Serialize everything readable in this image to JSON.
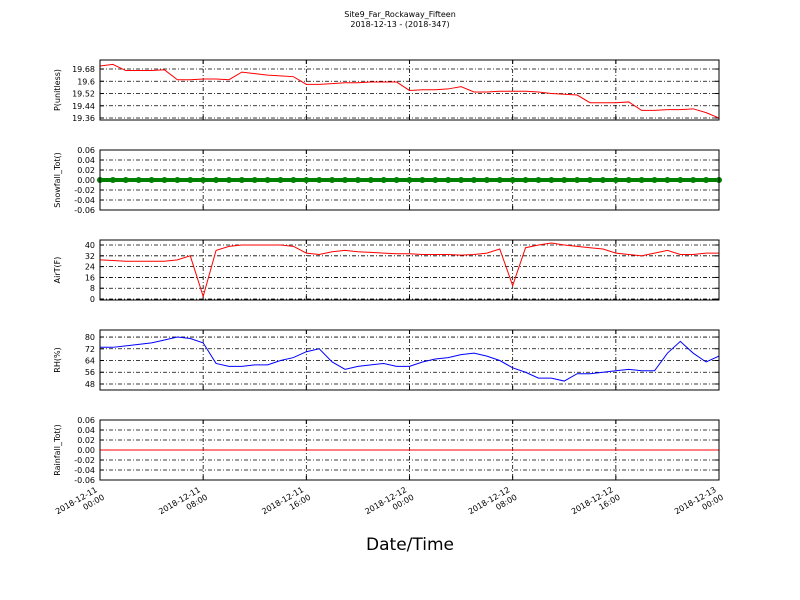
{
  "title": "Site9_Far_Rockaway_Fifteen",
  "subtitle": "2018-12-13 - (2018-347)",
  "xlabel": "Date/Time",
  "x": [
    "2018-12-11 00:00",
    "2018-12-11 01:00",
    "2018-12-11 02:00",
    "2018-12-11 03:00",
    "2018-12-11 04:00",
    "2018-12-11 05:00",
    "2018-12-11 06:00",
    "2018-12-11 07:00",
    "2018-12-11 08:00",
    "2018-12-11 09:00",
    "2018-12-11 10:00",
    "2018-12-11 11:00",
    "2018-12-11 12:00",
    "2018-12-11 13:00",
    "2018-12-11 14:00",
    "2018-12-11 15:00",
    "2018-12-11 16:00",
    "2018-12-11 17:00",
    "2018-12-11 18:00",
    "2018-12-11 19:00",
    "2018-12-11 20:00",
    "2018-12-11 21:00",
    "2018-12-11 22:00",
    "2018-12-11 23:00",
    "2018-12-12 00:00",
    "2018-12-12 01:00",
    "2018-12-12 02:00",
    "2018-12-12 03:00",
    "2018-12-12 04:00",
    "2018-12-12 05:00",
    "2018-12-12 06:00",
    "2018-12-12 07:00",
    "2018-12-12 08:00",
    "2018-12-12 09:00",
    "2018-12-12 10:00",
    "2018-12-12 11:00",
    "2018-12-12 12:00",
    "2018-12-12 13:00",
    "2018-12-12 14:00",
    "2018-12-12 15:00",
    "2018-12-12 16:00",
    "2018-12-12 17:00",
    "2018-12-12 18:00",
    "2018-12-12 19:00",
    "2018-12-12 20:00",
    "2018-12-12 21:00",
    "2018-12-12 22:00",
    "2018-12-12 23:00",
    "2018-12-13 00:00"
  ],
  "xlim": [
    "2018-12-11 00:00",
    "2018-12-13 00:00"
  ],
  "xticks": [
    "2018-12-11 00:00",
    "2018-12-11 08:00",
    "2018-12-11 16:00",
    "2018-12-12 00:00",
    "2018-12-12 08:00",
    "2018-12-12 16:00",
    "2018-12-13 00:00"
  ],
  "chart_data": [
    {
      "type": "line",
      "ylabel": "P(unitless)",
      "color": "#ff0000",
      "grid": true,
      "ylim": [
        19.347,
        19.739
      ],
      "yticks": [
        19.36,
        19.44,
        19.52,
        19.6,
        {
          "value": 19.68,
          "label": "19.68"
        }
      ],
      "values": [
        19.7,
        19.71,
        19.67,
        19.67,
        19.67,
        19.675,
        19.61,
        19.61,
        19.615,
        19.615,
        19.61,
        19.66,
        19.65,
        19.64,
        19.635,
        19.63,
        19.58,
        19.58,
        19.585,
        19.59,
        19.59,
        19.595,
        19.595,
        19.595,
        19.54,
        19.545,
        19.545,
        19.55,
        19.565,
        19.53,
        19.53,
        19.535,
        19.535,
        19.535,
        19.53,
        19.52,
        19.515,
        19.51,
        19.46,
        19.46,
        19.46,
        19.465,
        19.41,
        19.41,
        19.415,
        19.415,
        19.42,
        19.395,
        19.36
      ]
    },
    {
      "type": "line",
      "ylabel": "Snowfall_Tot()",
      "color": "#008000",
      "grid": true,
      "marker": true,
      "ylim": [
        -0.06,
        0.06
      ],
      "yticks": [
        -0.06,
        -0.04,
        -0.02,
        {
          "value": 0,
          "label": "0.00"
        },
        0.02,
        0.04,
        0.06
      ],
      "values": [
        0,
        0,
        0,
        0,
        0,
        0,
        0,
        0,
        0,
        0,
        0,
        0,
        0,
        0,
        0,
        0,
        0,
        0,
        0,
        0,
        0,
        0,
        0,
        0,
        0,
        0,
        0,
        0,
        0,
        0,
        0,
        0,
        0,
        0,
        0,
        0,
        0,
        0,
        0,
        0,
        0,
        0,
        0,
        0,
        0,
        0,
        0,
        0,
        0
      ]
    },
    {
      "type": "line",
      "ylabel": "AirT(F)",
      "color": "#ff0000",
      "grid": true,
      "ylim": [
        -0.7,
        43.7
      ],
      "yticks": [
        0,
        8,
        16,
        24,
        32,
        40
      ],
      "values": [
        29,
        28.5,
        28,
        28,
        28,
        28,
        29,
        32,
        2,
        36,
        39,
        40,
        40,
        40,
        40,
        39,
        34,
        33,
        35,
        36,
        35,
        34.5,
        34,
        33.5,
        33.5,
        33,
        33,
        33,
        32.5,
        33,
        34,
        37,
        10,
        38,
        40,
        41.5,
        40,
        39,
        38,
        37,
        34,
        33,
        32,
        34,
        36,
        33,
        33,
        34,
        34
      ]
    },
    {
      "type": "line",
      "ylabel": "RH(%)",
      "color": "#0000ff",
      "grid": true,
      "ylim": [
        43.9,
        84.8
      ],
      "yticks": [
        48,
        56,
        64,
        72,
        80
      ],
      "values": [
        73,
        73,
        74,
        75,
        76,
        78,
        80,
        79,
        76,
        62,
        60,
        60,
        61,
        61,
        64,
        66,
        70,
        72,
        63,
        58,
        60,
        61,
        62,
        60,
        60,
        63,
        65,
        66,
        68,
        69,
        67,
        64,
        59,
        56,
        52,
        52,
        50,
        55,
        55,
        56,
        57,
        58,
        57,
        57,
        69,
        77,
        69,
        63,
        67
      ]
    },
    {
      "type": "line",
      "ylabel": "Rainfall_Tot()",
      "color": "#ff0000",
      "grid": true,
      "ylim": [
        -0.06,
        0.06
      ],
      "yticks": [
        -0.06,
        -0.04,
        -0.02,
        {
          "value": 0,
          "label": "0.00"
        },
        0.02,
        0.04,
        0.06
      ],
      "values": [
        0,
        0,
        0,
        0,
        0,
        0,
        0,
        0,
        0,
        0,
        0,
        0,
        0,
        0,
        0,
        0,
        0,
        0,
        0,
        0,
        0,
        0,
        0,
        0,
        0,
        0,
        0,
        0,
        0,
        0,
        0,
        0,
        0,
        0,
        0,
        0,
        0,
        0,
        0,
        0,
        0,
        0,
        0,
        0,
        0,
        0,
        0,
        0,
        0
      ]
    }
  ]
}
